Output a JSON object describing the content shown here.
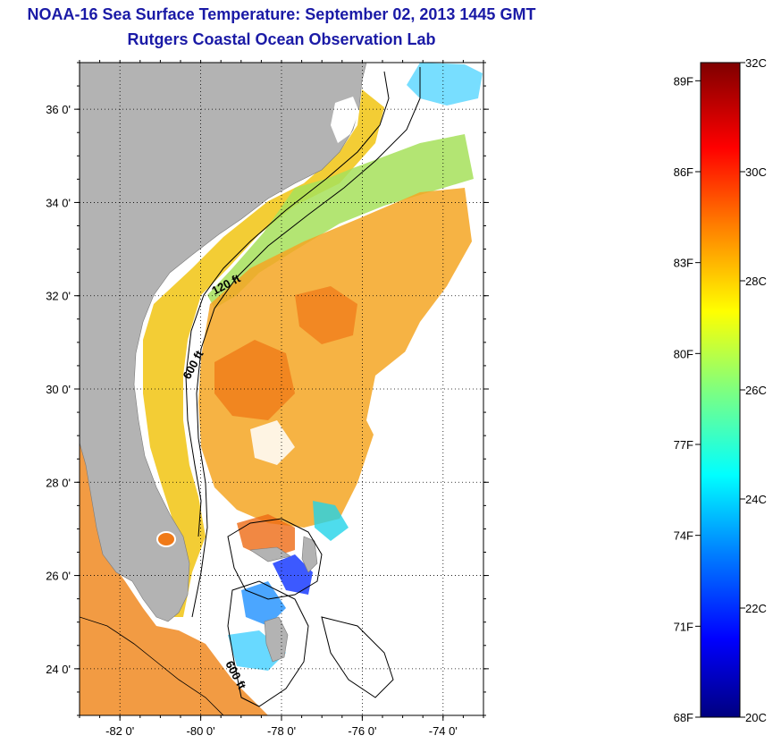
{
  "header": {
    "title": "NOAA-16 Sea Surface Temperature:  September 02, 2013 1445 GMT",
    "subtitle": "Rutgers Coastal Ocean Observation Lab"
  },
  "map": {
    "lon_range": [
      -83,
      -73
    ],
    "lat_range": [
      23,
      37
    ],
    "lon_ticks": [
      -82,
      -80,
      -78,
      -76,
      -74
    ],
    "lat_ticks": [
      24,
      26,
      28,
      30,
      32,
      34,
      36
    ],
    "lon_tick_labels": [
      "-82 0'",
      "-80 0'",
      "-78 0'",
      "-76 0'",
      "-74 0'"
    ],
    "lat_tick_labels": [
      "24 0'",
      "26 0'",
      "28 0'",
      "30 0'",
      "32 0'",
      "34 0'",
      "36 0'"
    ],
    "contour_labels": [
      "120 ft",
      "600 ft",
      "600 ft"
    ],
    "colors": {
      "land": "#b3b3b3",
      "no_data": "#ffffff",
      "grid": "#000000"
    }
  },
  "colorbar": {
    "fahrenheit_labels": [
      "89F",
      "86F",
      "83F",
      "80F",
      "77F",
      "74F",
      "71F",
      "68F"
    ],
    "celsius_labels": [
      "32C",
      "30C",
      "28C",
      "26C",
      "24C",
      "22C",
      "20C"
    ],
    "range_c": [
      20,
      32
    ],
    "colors": [
      "#00007f",
      "#0000ff",
      "#007fff",
      "#00ffff",
      "#7fff7f",
      "#ffff00",
      "#ff7f00",
      "#ff0000",
      "#7f0000"
    ]
  }
}
